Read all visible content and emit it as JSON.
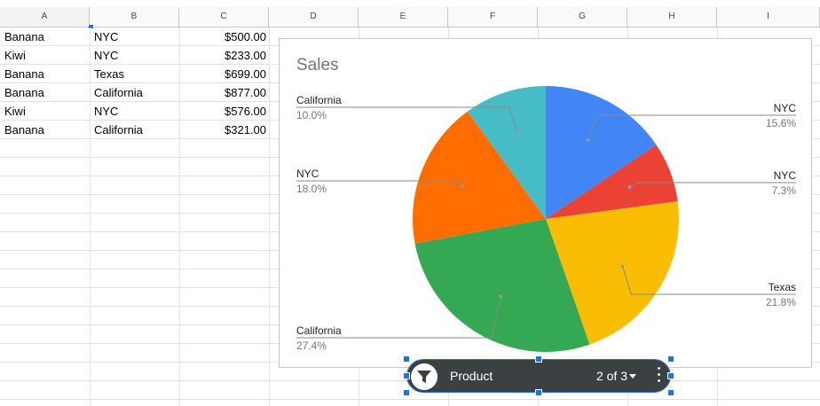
{
  "columns": [
    "A",
    "B",
    "C",
    "D",
    "E",
    "F",
    "G",
    "H",
    "I"
  ],
  "rows": [
    {
      "product": "Banana",
      "region": "NYC",
      "amount": "$500.00"
    },
    {
      "product": "Kiwi",
      "region": "NYC",
      "amount": "$233.00"
    },
    {
      "product": "Banana",
      "region": "Texas",
      "amount": "$699.00"
    },
    {
      "product": "Banana",
      "region": "California",
      "amount": "$877.00"
    },
    {
      "product": "Kiwi",
      "region": "NYC",
      "amount": "$576.00"
    },
    {
      "product": "Banana",
      "region": "California",
      "amount": "$321.00"
    }
  ],
  "chart": {
    "title": "Sales"
  },
  "chart_data": {
    "type": "pie",
    "title": "Sales",
    "slices": [
      {
        "label": "NYC",
        "percent_label": "15.6%",
        "value": 15.6,
        "color": "#4285f4"
      },
      {
        "label": "NYC",
        "percent_label": "7.3%",
        "value": 7.3,
        "color": "#ea4335"
      },
      {
        "label": "Texas",
        "percent_label": "21.8%",
        "value": 21.8,
        "color": "#fbbc04"
      },
      {
        "label": "California",
        "percent_label": "27.4%",
        "value": 27.4,
        "color": "#34a853"
      },
      {
        "label": "NYC",
        "percent_label": "18.0%",
        "value": 18.0,
        "color": "#ff6d01"
      },
      {
        "label": "California",
        "percent_label": "10.0%",
        "value": 10.0,
        "color": "#46bdc6"
      }
    ]
  },
  "slicer": {
    "label": "Product",
    "count": "2 of 3",
    "icon": "filter-icon",
    "more_icon": "more-vert-icon"
  }
}
